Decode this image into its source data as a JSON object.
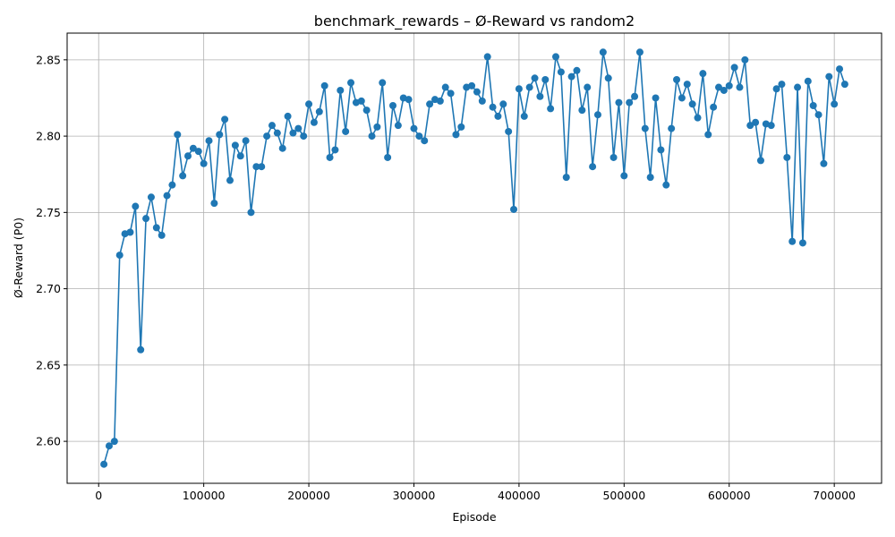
{
  "chart_data": {
    "type": "line",
    "title": "benchmark_rewards – Ø-Reward vs random2",
    "xlabel": "Episode",
    "ylabel": "Ø-Reward (P0)",
    "xlim": [
      -30000,
      745000
    ],
    "ylim": [
      2.5725,
      2.8675
    ],
    "xticks": [
      0,
      100000,
      200000,
      300000,
      400000,
      500000,
      600000,
      700000
    ],
    "xtick_labels": [
      "0",
      "100000",
      "200000",
      "300000",
      "400000",
      "500000",
      "600000",
      "700000"
    ],
    "yticks": [
      2.6,
      2.65,
      2.7,
      2.75,
      2.8,
      2.85
    ],
    "ytick_labels": [
      "2.60",
      "2.65",
      "2.70",
      "2.75",
      "2.80",
      "2.85"
    ],
    "grid": true,
    "color": "#1f77b4",
    "marker": "circle",
    "x": [
      5000,
      10000,
      15000,
      20000,
      25000,
      30000,
      35000,
      40000,
      45000,
      50000,
      55000,
      60000,
      65000,
      70000,
      75000,
      80000,
      85000,
      90000,
      95000,
      100000,
      105000,
      110000,
      115000,
      120000,
      125000,
      130000,
      135000,
      140000,
      145000,
      150000,
      155000,
      160000,
      165000,
      170000,
      175000,
      180000,
      185000,
      190000,
      195000,
      200000,
      205000,
      210000,
      215000,
      220000,
      225000,
      230000,
      235000,
      240000,
      245000,
      250000,
      255000,
      260000,
      265000,
      270000,
      275000,
      280000,
      285000,
      290000,
      295000,
      300000,
      305000,
      310000,
      315000,
      320000,
      325000,
      330000,
      335000,
      340000,
      345000,
      350000,
      355000,
      360000,
      365000,
      370000,
      375000,
      380000,
      385000,
      390000,
      395000,
      400000,
      405000,
      410000,
      415000,
      420000,
      425000,
      430000,
      435000,
      440000,
      445000,
      450000,
      455000,
      460000,
      465000,
      470000,
      475000,
      480000,
      485000,
      490000,
      495000,
      500000,
      505000,
      510000,
      515000,
      520000,
      525000,
      530000,
      535000,
      540000,
      545000,
      550000,
      555000,
      560000,
      565000,
      570000,
      575000,
      580000,
      585000,
      590000,
      595000,
      600000,
      605000,
      610000,
      615000,
      620000,
      625000,
      630000,
      635000,
      640000,
      645000,
      650000,
      655000,
      660000,
      665000,
      670000,
      675000,
      680000,
      685000,
      690000,
      695000,
      700000,
      705000,
      710000
    ],
    "y": [
      2.585,
      2.597,
      2.6,
      2.722,
      2.736,
      2.737,
      2.754,
      2.66,
      2.746,
      2.76,
      2.74,
      2.735,
      2.761,
      2.768,
      2.801,
      2.774,
      2.787,
      2.792,
      2.79,
      2.782,
      2.797,
      2.756,
      2.801,
      2.811,
      2.771,
      2.794,
      2.787,
      2.797,
      2.75,
      2.78,
      2.78,
      2.8,
      2.807,
      2.802,
      2.792,
      2.813,
      2.802,
      2.805,
      2.8,
      2.821,
      2.809,
      2.816,
      2.833,
      2.786,
      2.791,
      2.83,
      2.803,
      2.835,
      2.822,
      2.823,
      2.817,
      2.8,
      2.806,
      2.835,
      2.786,
      2.82,
      2.807,
      2.825,
      2.824,
      2.805,
      2.8,
      2.797,
      2.821,
      2.824,
      2.823,
      2.832,
      2.828,
      2.801,
      2.806,
      2.832,
      2.833,
      2.829,
      2.823,
      2.852,
      2.819,
      2.813,
      2.821,
      2.803,
      2.752,
      2.831,
      2.813,
      2.832,
      2.838,
      2.826,
      2.837,
      2.818,
      2.852,
      2.842,
      2.773,
      2.839,
      2.843,
      2.817,
      2.832,
      2.78,
      2.814,
      2.855,
      2.838,
      2.786,
      2.822,
      2.774,
      2.822,
      2.826,
      2.855,
      2.805,
      2.773,
      2.825,
      2.791,
      2.768,
      2.805,
      2.837,
      2.825,
      2.834,
      2.821,
      2.812,
      2.841,
      2.801,
      2.819,
      2.832,
      2.83,
      2.833,
      2.845,
      2.832,
      2.85,
      2.807,
      2.809,
      2.784,
      2.808,
      2.807,
      2.831,
      2.834,
      2.786,
      2.731,
      2.832,
      2.73,
      2.836,
      2.82,
      2.814,
      2.782,
      2.839,
      2.821,
      2.844,
      2.834
    ]
  }
}
